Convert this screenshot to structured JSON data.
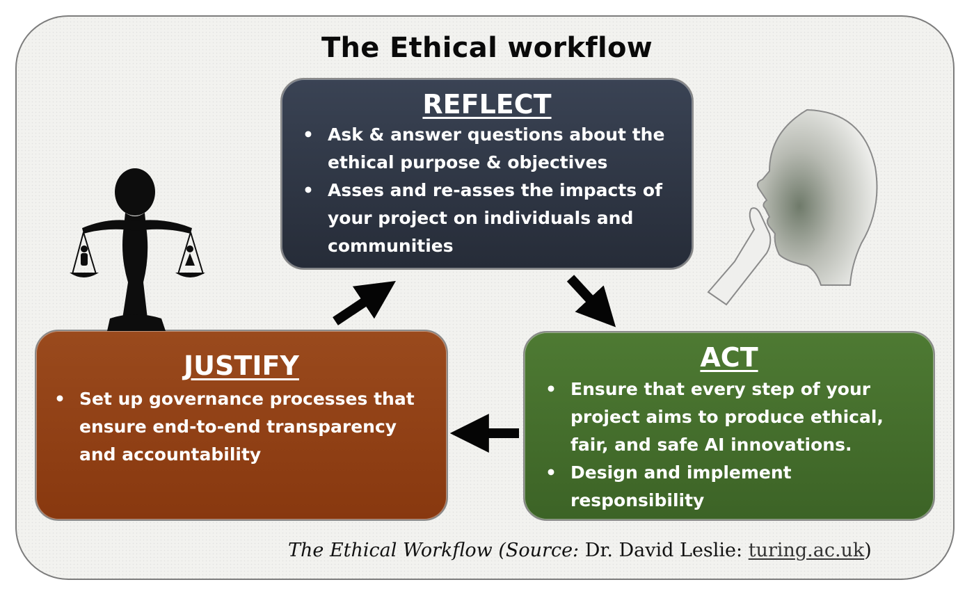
{
  "title": "The Ethical workflow",
  "reflect": {
    "heading": "REFLECT",
    "bullets": [
      "Ask & answer questions about the ethical purpose & objectives",
      "Asses and  re-asses the impacts of your project on individuals and communities"
    ],
    "color": "#2e3442"
  },
  "justify": {
    "heading": "JUSTIFY",
    "bullets": [
      "Set up governance processes that ensure end-to-end transparency and accountability"
    ],
    "color": "#8e3f15"
  },
  "act": {
    "heading": "ACT",
    "bullets": [
      "Ensure that every step of your project aims to produce ethical, fair, and safe AI innovations.",
      "Design and implement responsibility"
    ],
    "color": "#456f2d"
  },
  "caption": {
    "part1": "The Ethical Workflow (Source: ",
    "part2": "Dr. David Leslie: ",
    "link": "turing.ac.uk",
    "part3": ")"
  },
  "icons": {
    "scales": "scales-of-justice-figure-icon",
    "thinker": "thinking-head-icon",
    "arrows": [
      "arrow-justify-to-reflect",
      "arrow-reflect-to-act",
      "arrow-act-to-justify"
    ]
  }
}
